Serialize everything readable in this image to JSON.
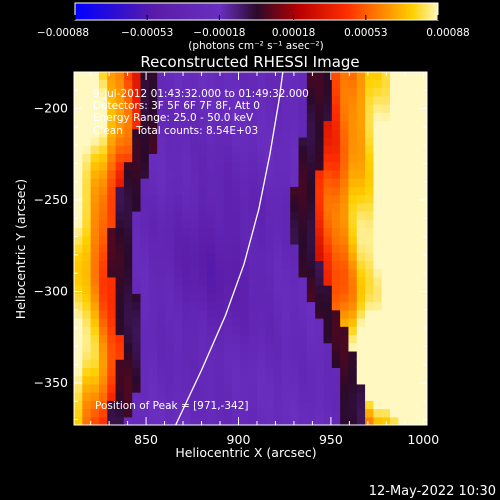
{
  "chart_data": {
    "type": "heatmap",
    "title": "Reconstructed RHESSI Image",
    "xlabel": "Heliocentric X (arcsec)",
    "ylabel": "Heliocentric Y (arcsec)",
    "xlim": [
      811,
      1002
    ],
    "ylim": [
      -373,
      -180
    ],
    "x_ticks": [
      850,
      900,
      950,
      1000
    ],
    "y_ticks": [
      -350,
      -300,
      -250,
      -200
    ],
    "x_tick_labels": [
      "850",
      "900",
      "950",
      "1000"
    ],
    "y_tick_labels": [
      "−350",
      "−300",
      "−250",
      "−200"
    ],
    "colorbar": {
      "range": [
        -0.00088,
        0.00088
      ],
      "tick_values": [
        -0.00088,
        -0.00053,
        -0.00018,
        0.00018,
        0.00053,
        0.00088
      ],
      "tick_labels": [
        "−0.00088",
        "−0.00053",
        "−0.00018",
        "0.00018",
        "0.00053",
        "0.00088"
      ],
      "unit_label": "(photons cm⁻² s⁻¹ asec⁻²)",
      "colormap": [
        "#0000ff",
        "#5a1ca8",
        "#6a2fc0",
        "#2a0a2a",
        "#bb0000",
        "#ff3000",
        "#ff8a00",
        "#ffd000",
        "#fff8c0"
      ]
    },
    "annotations": {
      "time": "9-Jul-2012 01:43:32.000 to 01:49:32.000",
      "detectors": "Detectors: 3F 5F 6F 7F 8F, Att 0",
      "energy": "Energy Range: 25.0 - 50.0 keV",
      "clean": "Clean    Total counts: 8.54E+03",
      "peak": "Position of Peak = [971,-342]"
    },
    "peak_position": [
      971,
      -342
    ],
    "limb_curve": [
      [
        866,
        -373
      ],
      [
        880,
        -343
      ],
      [
        893,
        -313
      ],
      [
        903,
        -285
      ],
      [
        911,
        -255
      ],
      [
        917,
        -225
      ],
      [
        922,
        -195
      ],
      [
        924,
        -180
      ]
    ],
    "footer_date": "12-May-2022 10:30"
  }
}
